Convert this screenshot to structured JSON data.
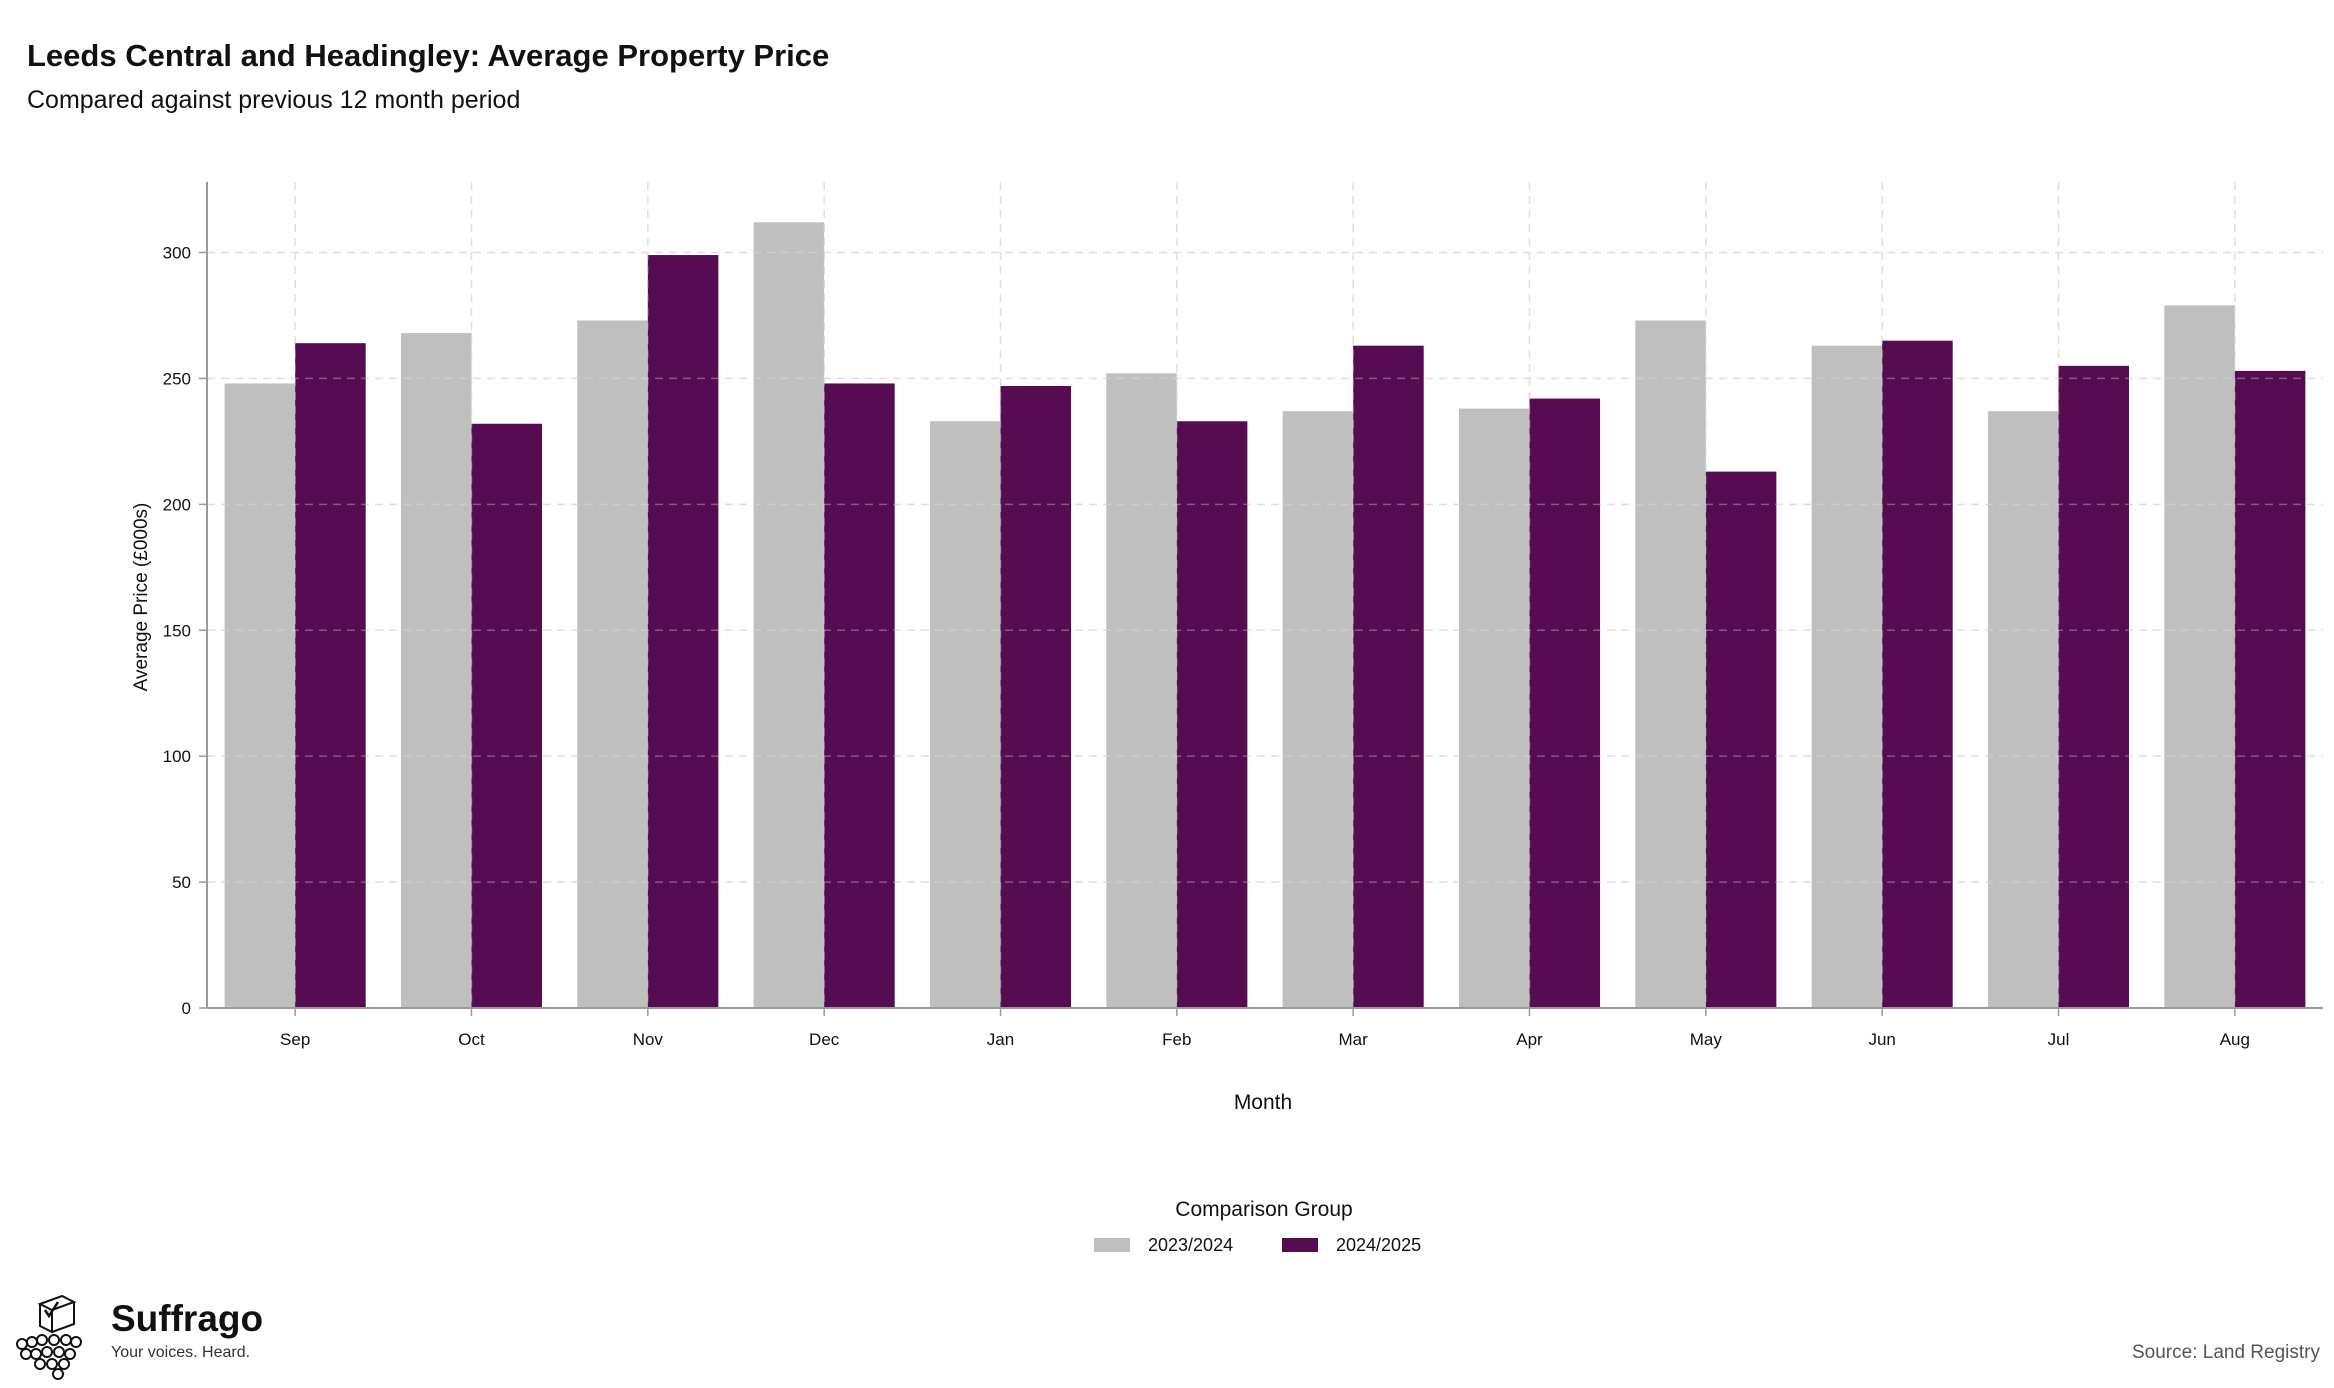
{
  "colors": {
    "series_previous": "#bfbfbf",
    "series_current": "#550c50",
    "grid": "#dcdcdc",
    "axis": "#999999"
  },
  "legend": {
    "title": "Comparison Group"
  },
  "brand": {
    "logo_icon": "ballot-box-crowd-icon",
    "name": "Suffrago",
    "tagline": "Your voices. Heard."
  },
  "footer": {
    "source": "Source: Land Registry"
  },
  "chart_data": {
    "type": "bar",
    "title": "Leeds Central and Headingley: Average Property Price",
    "subtitle": "Compared against previous 12 month period",
    "xlabel": "Month",
    "ylabel": "Average Price (£000s)",
    "ylim": [
      0,
      328
    ],
    "yticks": [
      0,
      50,
      100,
      150,
      200,
      250,
      300
    ],
    "grid": true,
    "legend_position": "bottom",
    "categories": [
      "Sep",
      "Oct",
      "Nov",
      "Dec",
      "Jan",
      "Feb",
      "Mar",
      "Apr",
      "May",
      "Jun",
      "Jul",
      "Aug"
    ],
    "series": [
      {
        "name": "2023/2024",
        "values": [
          248,
          268,
          273,
          312,
          233,
          252,
          237,
          238,
          273,
          263,
          237,
          279
        ]
      },
      {
        "name": "2024/2025",
        "values": [
          264,
          232,
          299,
          248,
          247,
          233,
          263,
          242,
          213,
          265,
          255,
          253
        ]
      }
    ]
  }
}
